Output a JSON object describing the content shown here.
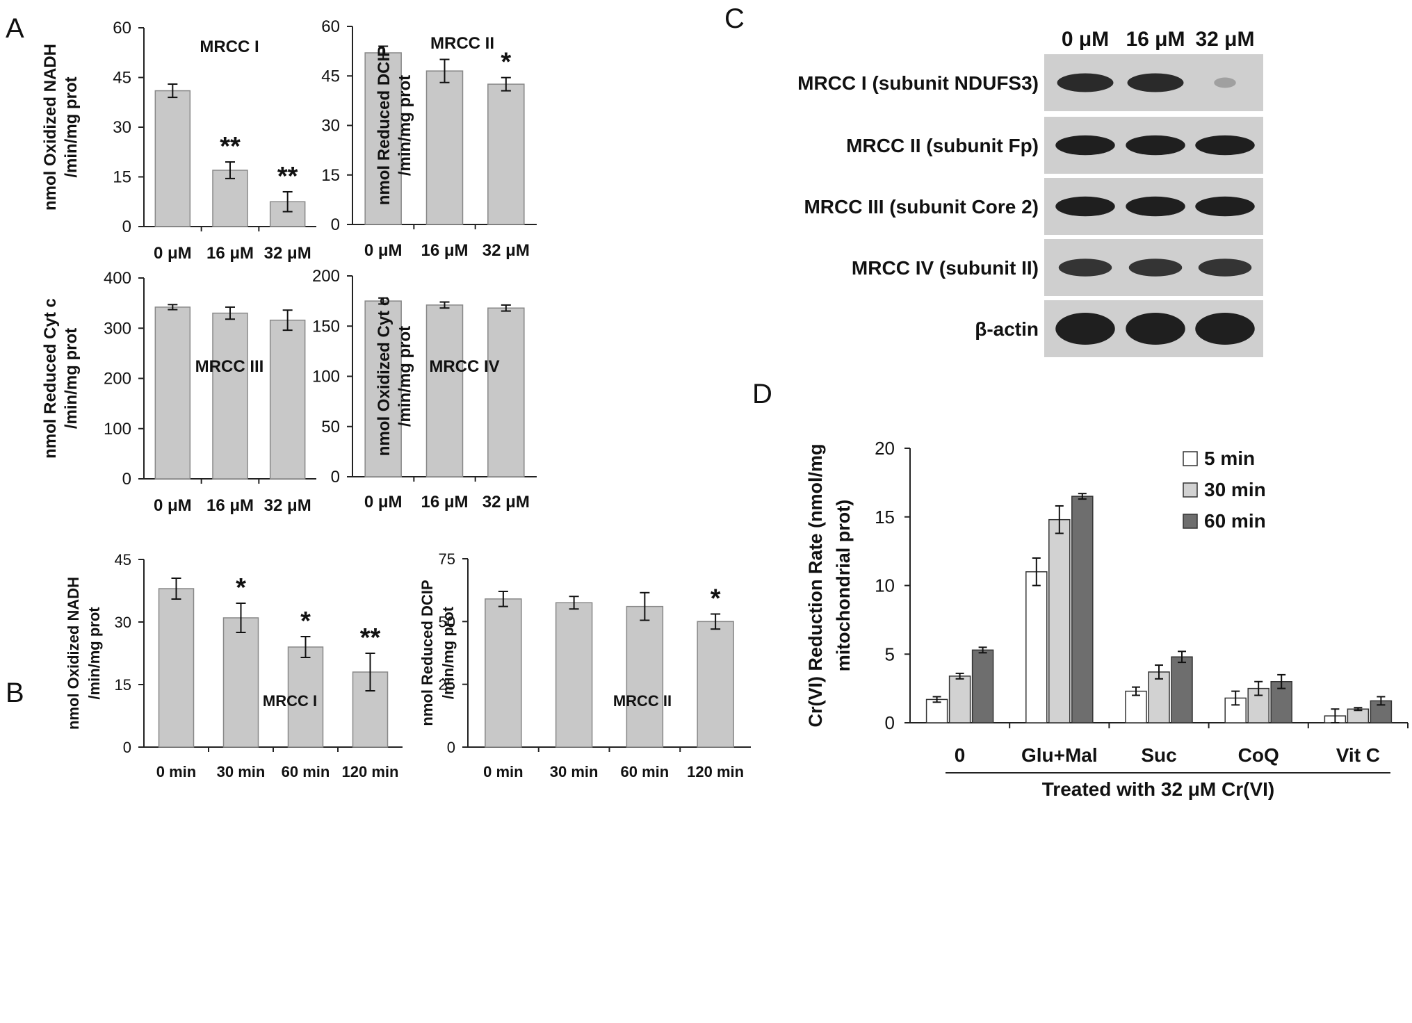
{
  "panel_labels": [
    "A",
    "B",
    "C",
    "D"
  ],
  "chart_data": [
    {
      "panel": "A",
      "type": "bar",
      "title": "MRCC I",
      "ylabel": [
        "nmol Oxidized NADH",
        "/min/mg prot"
      ],
      "categories": [
        "0 μM",
        "16 μM",
        "32 μM"
      ],
      "values": [
        41,
        17,
        7.5
      ],
      "errors": [
        2,
        2.5,
        3
      ],
      "annotations": [
        "",
        "**",
        "**"
      ],
      "ylim": [
        0,
        60
      ],
      "yticks": [
        0,
        15,
        30,
        45,
        60
      ],
      "bar_color": "#c8c8c8"
    },
    {
      "panel": "A",
      "type": "bar",
      "title": "MRCC II",
      "ylabel": [
        "nmol Reduced DCIP",
        "/min/mg prot"
      ],
      "categories": [
        "0 μM",
        "16 μM",
        "32 μM"
      ],
      "values": [
        52,
        46.5,
        42.5
      ],
      "errors": [
        2,
        3.5,
        2
      ],
      "annotations": [
        "",
        "",
        "*"
      ],
      "ylim": [
        0,
        60
      ],
      "yticks": [
        0,
        15,
        30,
        45,
        60
      ],
      "bar_color": "#c8c8c8"
    },
    {
      "panel": "A",
      "type": "bar",
      "title": "MRCC III",
      "ylabel": [
        "nmol Reduced Cyt c",
        "/min/mg prot"
      ],
      "categories": [
        "0 μM",
        "16 μM",
        "32 μM"
      ],
      "values": [
        342,
        330,
        316
      ],
      "errors": [
        5,
        12,
        20
      ],
      "annotations": [
        "",
        "",
        ""
      ],
      "ylim": [
        0,
        400
      ],
      "yticks": [
        0,
        100,
        200,
        300,
        400
      ],
      "bar_color": "#c8c8c8"
    },
    {
      "panel": "A",
      "type": "bar",
      "title": "MRCC IV",
      "ylabel": [
        "nmol Oxidized Cyt c",
        "/min/mg prot"
      ],
      "categories": [
        "0 μM",
        "16 μM",
        "32 μM"
      ],
      "values": [
        175,
        171,
        168
      ],
      "errors": [
        3,
        3,
        3
      ],
      "annotations": [
        "",
        "",
        ""
      ],
      "ylim": [
        0,
        200
      ],
      "yticks": [
        0,
        50,
        100,
        150,
        200
      ],
      "bar_color": "#c8c8c8"
    },
    {
      "panel": "B",
      "type": "bar",
      "title": "MRCC I",
      "ylabel": [
        "nmol Oxidized NADH",
        "/min/mg prot"
      ],
      "categories": [
        "0 min",
        "30 min",
        "60 min",
        "120 min"
      ],
      "values": [
        38,
        31,
        24,
        18
      ],
      "errors": [
        2.5,
        3.5,
        2.5,
        4.5
      ],
      "annotations": [
        "",
        "*",
        "*",
        "**"
      ],
      "ylim": [
        0,
        45
      ],
      "yticks": [
        0,
        15,
        30,
        45
      ],
      "bar_color": "#c8c8c8"
    },
    {
      "panel": "B",
      "type": "bar",
      "title": "MRCC II",
      "ylabel": [
        "nmol Reduced DCIP",
        "/min/mg prot"
      ],
      "categories": [
        "0 min",
        "30 min",
        "60 min",
        "120 min"
      ],
      "values": [
        59,
        57.5,
        56,
        50
      ],
      "errors": [
        3,
        2.5,
        5.5,
        3
      ],
      "annotations": [
        "",
        "",
        "",
        "*"
      ],
      "ylim": [
        0,
        75
      ],
      "yticks": [
        0,
        25,
        50,
        75
      ],
      "bar_color": "#c8c8c8"
    },
    {
      "panel": "D",
      "type": "bar",
      "title": "",
      "ylabel": [
        "Cr(VI) Reduction Rate (nmol/mg",
        "mitochondrial prot)"
      ],
      "xlabel": "Treated with 32 μM Cr(VI)",
      "categories": [
        "0",
        "Glu+Mal",
        "Suc",
        "CoQ",
        "Vit C"
      ],
      "series": [
        {
          "name": "5 min",
          "color": "#ffffff",
          "values": [
            1.7,
            11,
            2.3,
            1.8,
            0.5
          ],
          "errors": [
            0.2,
            1,
            0.3,
            0.5,
            0.5
          ]
        },
        {
          "name": "30 min",
          "color": "#d2d2d2",
          "values": [
            3.4,
            14.8,
            3.7,
            2.5,
            1
          ],
          "errors": [
            0.2,
            1,
            0.5,
            0.5,
            0.1
          ]
        },
        {
          "name": "60 min",
          "color": "#6e6e6e",
          "values": [
            5.3,
            16.5,
            4.8,
            3,
            1.6
          ],
          "errors": [
            0.2,
            0.2,
            0.4,
            0.5,
            0.3
          ]
        }
      ],
      "ylim": [
        0,
        20
      ],
      "yticks": [
        0,
        5,
        10,
        15,
        20
      ],
      "legend_position": "top-right"
    }
  ],
  "western_blot": {
    "panel": "C",
    "lanes": [
      "0 μM",
      "16 μM",
      "32 μM"
    ],
    "rows": [
      {
        "label": "MRCC I (subunit NDUFS3)",
        "intensity": [
          0.9,
          0.9,
          0.35
        ]
      },
      {
        "label": "MRCC II (subunit Fp)",
        "intensity": [
          0.95,
          0.95,
          0.95
        ]
      },
      {
        "label": "MRCC III (subunit Core 2)",
        "intensity": [
          0.95,
          0.95,
          0.95
        ]
      },
      {
        "label": "MRCC IV (subunit II)",
        "intensity": [
          0.85,
          0.85,
          0.85
        ]
      },
      {
        "label": "β-actin",
        "intensity": [
          0.95,
          0.95,
          0.95
        ]
      }
    ]
  }
}
